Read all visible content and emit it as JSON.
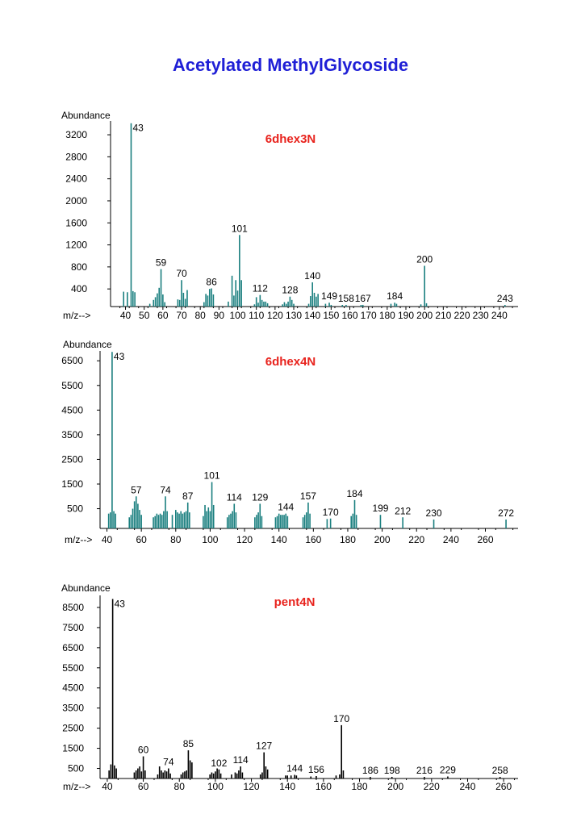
{
  "page_title": "Acetylated MethylGlycoside",
  "colors": {
    "title": "#1f1fd6",
    "panel_label": "#e8231d",
    "teal": "#1a7f7f",
    "black": "#000000",
    "axis": "#000000"
  },
  "chart_data": [
    {
      "type": "bar",
      "title": "6dhex3N",
      "ylabel": "Abundance",
      "xlabel": "m/z-->",
      "bar_color": "#1a7f7f",
      "xlim": [
        32,
        250
      ],
      "ylim": [
        80,
        3450
      ],
      "yticks": [
        400,
        800,
        1200,
        1600,
        2000,
        2400,
        2800,
        3200
      ],
      "xticks": [
        40,
        50,
        60,
        70,
        80,
        90,
        100,
        110,
        120,
        130,
        140,
        150,
        160,
        170,
        180,
        190,
        200,
        210,
        220,
        230,
        240
      ],
      "x": [
        39,
        41,
        43,
        44,
        45,
        53,
        55,
        56,
        57,
        58,
        59,
        60,
        61,
        68,
        69,
        70,
        71,
        72,
        73,
        82,
        83,
        84,
        85,
        86,
        87,
        95,
        97,
        98,
        99,
        100,
        101,
        102,
        109,
        110,
        111,
        112,
        113,
        114,
        115,
        116,
        124,
        125,
        126,
        127,
        128,
        129,
        130,
        138,
        139,
        140,
        141,
        142,
        143,
        147,
        149,
        150,
        156,
        158,
        166,
        167,
        182,
        184,
        185,
        198,
        200,
        201,
        243
      ],
      "y": [
        350,
        340,
        3410,
        360,
        340,
        130,
        200,
        250,
        320,
        420,
        760,
        300,
        160,
        210,
        200,
        560,
        330,
        220,
        380,
        160,
        310,
        280,
        400,
        410,
        300,
        170,
        640,
        280,
        560,
        370,
        1380,
        560,
        120,
        250,
        150,
        290,
        200,
        170,
        170,
        140,
        120,
        160,
        130,
        170,
        260,
        200,
        130,
        130,
        270,
        520,
        330,
        260,
        310,
        130,
        150,
        110,
        100,
        110,
        100,
        110,
        130,
        150,
        130,
        120,
        820,
        140,
        100
      ],
      "peak_labels": [
        {
          "x": 43,
          "y": 3410,
          "text": "43"
        },
        {
          "x": 59,
          "y": 760,
          "text": "59"
        },
        {
          "x": 70,
          "y": 560,
          "text": "70"
        },
        {
          "x": 86,
          "y": 410,
          "text": "86"
        },
        {
          "x": 101,
          "y": 1380,
          "text": "101"
        },
        {
          "x": 112,
          "y": 290,
          "text": "112"
        },
        {
          "x": 128,
          "y": 260,
          "text": "128"
        },
        {
          "x": 140,
          "y": 520,
          "text": "140"
        },
        {
          "x": 149,
          "y": 150,
          "text": "149"
        },
        {
          "x": 158,
          "y": 110,
          "text": "158"
        },
        {
          "x": 167,
          "y": 110,
          "text": "167"
        },
        {
          "x": 184,
          "y": 150,
          "text": "184"
        },
        {
          "x": 200,
          "y": 820,
          "text": "200"
        },
        {
          "x": 243,
          "y": 100,
          "text": "243"
        }
      ]
    },
    {
      "type": "bar",
      "title": "6dhex4N",
      "ylabel": "Abundance",
      "xlabel": "m/z-->",
      "bar_color": "#1a7f7f",
      "xlim": [
        36,
        279
      ],
      "ylim": [
        -300,
        6900
      ],
      "yticks": [
        500,
        1500,
        2500,
        3500,
        4500,
        5500,
        6500
      ],
      "xticks": [
        40,
        60,
        80,
        100,
        120,
        140,
        160,
        180,
        200,
        220,
        240,
        260
      ],
      "x": [
        41,
        42,
        43,
        44,
        45,
        53,
        54,
        55,
        56,
        57,
        58,
        59,
        60,
        67,
        68,
        69,
        70,
        71,
        72,
        73,
        74,
        75,
        78,
        80,
        81,
        82,
        83,
        84,
        85,
        86,
        87,
        88,
        96,
        97,
        98,
        99,
        100,
        101,
        102,
        110,
        111,
        112,
        113,
        114,
        115,
        126,
        127,
        128,
        129,
        130,
        138,
        139,
        140,
        141,
        142,
        143,
        144,
        145,
        154,
        155,
        156,
        157,
        158,
        168,
        170,
        182,
        183,
        184,
        185,
        199,
        212,
        230,
        272
      ],
      "y": [
        300,
        350,
        6860,
        400,
        300,
        150,
        250,
        500,
        800,
        1000,
        700,
        450,
        250,
        150,
        200,
        300,
        250,
        300,
        250,
        400,
        1000,
        400,
        250,
        450,
        350,
        300,
        400,
        300,
        350,
        400,
        750,
        350,
        200,
        650,
        400,
        550,
        400,
        1580,
        650,
        150,
        250,
        300,
        400,
        700,
        350,
        150,
        250,
        350,
        700,
        200,
        150,
        200,
        300,
        250,
        250,
        250,
        300,
        200,
        150,
        250,
        350,
        750,
        300,
        80,
        100,
        200,
        300,
        850,
        250,
        250,
        150,
        60,
        60
      ],
      "peak_labels": [
        {
          "x": 43,
          "y": 6860,
          "text": "43"
        },
        {
          "x": 57,
          "y": 1000,
          "text": "57"
        },
        {
          "x": 74,
          "y": 1000,
          "text": "74"
        },
        {
          "x": 87,
          "y": 750,
          "text": "87"
        },
        {
          "x": 101,
          "y": 1580,
          "text": "101"
        },
        {
          "x": 114,
          "y": 700,
          "text": "114"
        },
        {
          "x": 129,
          "y": 700,
          "text": "129"
        },
        {
          "x": 144,
          "y": 300,
          "text": "144"
        },
        {
          "x": 157,
          "y": 750,
          "text": "157"
        },
        {
          "x": 170,
          "y": 100,
          "text": "170"
        },
        {
          "x": 184,
          "y": 850,
          "text": "184"
        },
        {
          "x": 199,
          "y": 250,
          "text": "199"
        },
        {
          "x": 212,
          "y": 150,
          "text": "212"
        },
        {
          "x": 230,
          "y": 60,
          "text": "230"
        },
        {
          "x": 272,
          "y": 60,
          "text": "272"
        }
      ]
    },
    {
      "type": "bar",
      "title": "pent4N",
      "ylabel": "Abundance",
      "xlabel": "m/z-->",
      "bar_color": "#000000",
      "xlim": [
        36,
        268
      ],
      "ylim": [
        0,
        9100
      ],
      "yticks": [
        500,
        1500,
        2500,
        3500,
        4500,
        5500,
        6500,
        7500,
        8500
      ],
      "xticks": [
        40,
        60,
        80,
        100,
        120,
        140,
        160,
        180,
        200,
        220,
        240,
        260
      ],
      "x": [
        41,
        42,
        43,
        44,
        45,
        55,
        56,
        57,
        58,
        59,
        60,
        61,
        68,
        69,
        70,
        71,
        72,
        73,
        74,
        75,
        81,
        82,
        83,
        84,
        85,
        86,
        87,
        97,
        98,
        99,
        100,
        101,
        102,
        103,
        109,
        111,
        112,
        113,
        114,
        115,
        125,
        126,
        127,
        128,
        129,
        139,
        140,
        142,
        144,
        145,
        153,
        156,
        167,
        169,
        170,
        171,
        186,
        198,
        216,
        229,
        258
      ],
      "y": [
        400,
        700,
        8920,
        650,
        500,
        300,
        400,
        500,
        600,
        350,
        1100,
        400,
        200,
        600,
        400,
        300,
        400,
        350,
        500,
        250,
        200,
        300,
        350,
        400,
        1400,
        900,
        800,
        200,
        300,
        250,
        350,
        500,
        450,
        250,
        200,
        300,
        250,
        400,
        600,
        300,
        200,
        300,
        1300,
        600,
        450,
        150,
        150,
        150,
        180,
        150,
        100,
        120,
        150,
        200,
        2650,
        400,
        80,
        80,
        80,
        100,
        80
      ],
      "peak_labels": [
        {
          "x": 43,
          "y": 8920,
          "text": "43"
        },
        {
          "x": 60,
          "y": 1100,
          "text": "60"
        },
        {
          "x": 74,
          "y": 500,
          "text": "74"
        },
        {
          "x": 85,
          "y": 1400,
          "text": "85"
        },
        {
          "x": 102,
          "y": 450,
          "text": "102"
        },
        {
          "x": 114,
          "y": 600,
          "text": "114"
        },
        {
          "x": 127,
          "y": 1300,
          "text": "127"
        },
        {
          "x": 144,
          "y": 180,
          "text": "144"
        },
        {
          "x": 156,
          "y": 120,
          "text": "156"
        },
        {
          "x": 170,
          "y": 2650,
          "text": "170"
        },
        {
          "x": 186,
          "y": 80,
          "text": "186"
        },
        {
          "x": 198,
          "y": 80,
          "text": "198"
        },
        {
          "x": 216,
          "y": 80,
          "text": "216"
        },
        {
          "x": 229,
          "y": 100,
          "text": "229"
        },
        {
          "x": 258,
          "y": 80,
          "text": "258"
        }
      ]
    }
  ]
}
